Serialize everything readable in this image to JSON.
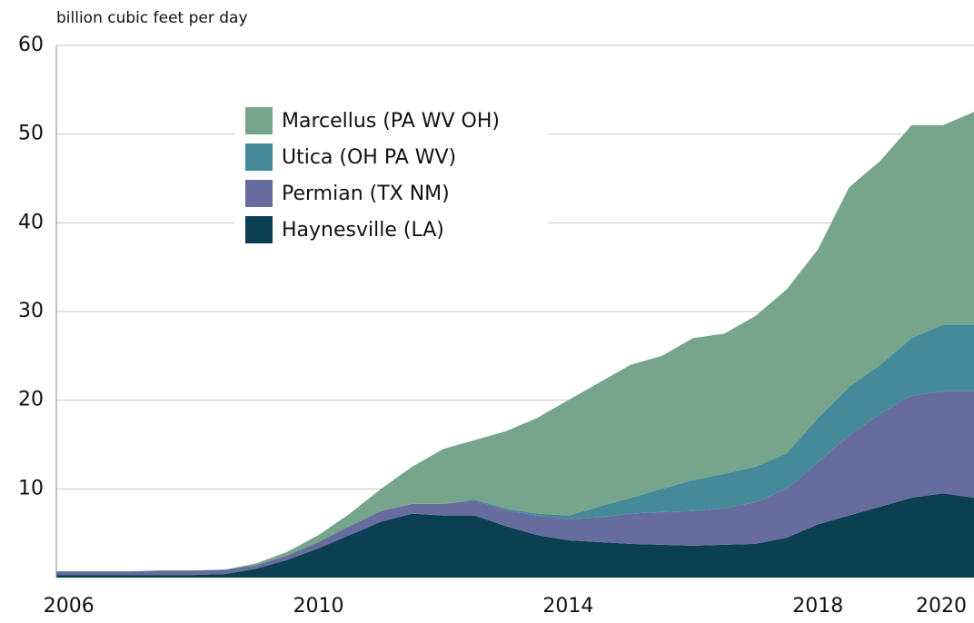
{
  "chart_data": {
    "type": "stacked-area",
    "ylabel": "billion cubic feet per day",
    "x": [
      2005.8,
      2006,
      2006.5,
      2007,
      2007.5,
      2008,
      2008.5,
      2009,
      2009.5,
      2010,
      2010.5,
      2011,
      2011.5,
      2012,
      2012.5,
      2013,
      2013.5,
      2014,
      2014.5,
      2015,
      2015.5,
      2016,
      2016.5,
      2017,
      2017.5,
      2018,
      2018.5,
      2019,
      2019.5,
      2020,
      2020.5
    ],
    "series": [
      {
        "name": "Marcellus (PA WV OH)",
        "color": "#76a58b",
        "values": [
          0,
          0,
          0,
          0,
          0,
          0,
          0,
          0.2,
          0.4,
          0.8,
          1.4,
          2.5,
          4.2,
          6.2,
          6.7,
          8.7,
          10.8,
          13.0,
          14.0,
          15.0,
          15.0,
          16.0,
          15.8,
          17.0,
          18.5,
          19.0,
          22.5,
          23.0,
          24.0,
          22.5,
          24.0
        ]
      },
      {
        "name": "Utica (OH PA WV)",
        "color": "#468a9a",
        "values": [
          0,
          0,
          0,
          0,
          0,
          0,
          0,
          0,
          0,
          0,
          0,
          0,
          0,
          0,
          0.1,
          0.2,
          0.2,
          0.4,
          1.2,
          1.8,
          2.6,
          3.5,
          3.9,
          4.0,
          4.0,
          5.0,
          5.5,
          5.5,
          6.5,
          7.5,
          7.5
        ]
      },
      {
        "name": "Permian (TX NM)",
        "color": "#676c9e",
        "values": [
          0.4,
          0.4,
          0.4,
          0.4,
          0.5,
          0.5,
          0.5,
          0.4,
          0.5,
          0.7,
          1.0,
          1.2,
          1.1,
          1.3,
          1.7,
          1.8,
          2.2,
          2.4,
          2.8,
          3.4,
          3.7,
          3.9,
          4.1,
          4.7,
          5.5,
          7.0,
          9.0,
          10.5,
          11.5,
          11.5,
          12.0
        ]
      },
      {
        "name": "Haynesville (LA)",
        "color": "#0b3f52",
        "values": [
          0.3,
          0.3,
          0.3,
          0.3,
          0.3,
          0.3,
          0.4,
          1.0,
          2.0,
          3.3,
          4.8,
          6.3,
          7.2,
          7.0,
          7.0,
          5.8,
          4.8,
          4.2,
          4.0,
          3.8,
          3.7,
          3.6,
          3.7,
          3.8,
          4.5,
          6.0,
          7.0,
          8.0,
          9.0,
          9.5,
          9.0
        ]
      }
    ],
    "xlim": [
      2005.8,
      2020.5
    ],
    "xticks": [
      2006,
      2010,
      2014,
      2018,
      2020
    ],
    "ylim": [
      0,
      60
    ],
    "yticks": [
      10,
      20,
      30,
      40,
      50,
      60
    ],
    "grid": true
  }
}
